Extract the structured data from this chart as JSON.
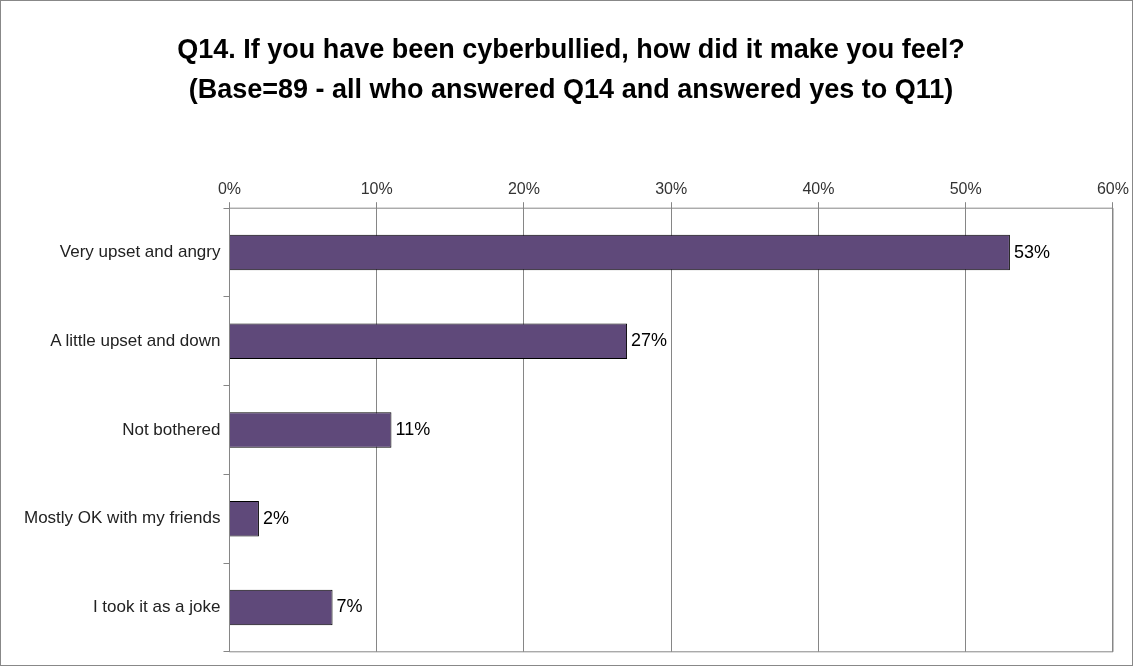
{
  "chart_data": {
    "type": "bar",
    "orientation": "horizontal",
    "title": "Q14. If you have been cyberbullied, how did it make you feel? (Base=89 - all who answered Q14 and answered yes to Q11)",
    "categories": [
      "Very upset and angry",
      "A little upset and down",
      "Not bothered",
      "Mostly OK with my friends",
      "I took it as a joke"
    ],
    "values": [
      53,
      27,
      11,
      2,
      7
    ],
    "value_labels": [
      "53%",
      "27%",
      "11%",
      "2%",
      "7%"
    ],
    "color": "#5f497a",
    "xlim": [
      0,
      60
    ],
    "xticks": [
      {
        "value": 0,
        "label": "0%"
      },
      {
        "value": 10,
        "label": "10%"
      },
      {
        "value": 20,
        "label": "20%"
      },
      {
        "value": 30,
        "label": "30%"
      },
      {
        "value": 40,
        "label": "40%"
      },
      {
        "value": 50,
        "label": "50%"
      },
      {
        "value": 60,
        "label": "60%"
      }
    ],
    "grid": "x",
    "legend": false
  }
}
